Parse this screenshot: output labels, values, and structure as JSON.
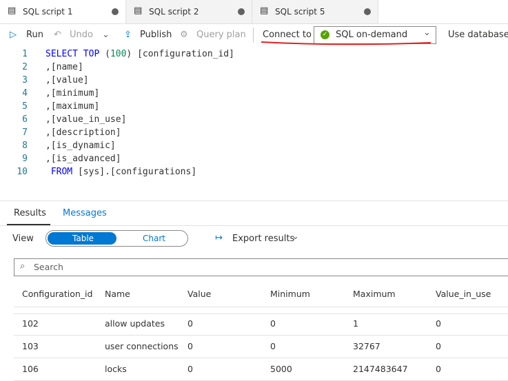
{
  "tabs": [
    "SQL script 1",
    "SQL script 2",
    "SQL script 5"
  ],
  "toolbar": {
    "run": "Run",
    "undo": "Undo",
    "publish": "Publish",
    "query_plan": "Query plan",
    "connect_label": "Connect to",
    "connect_value": "SQL on-demand",
    "use_database": "Use database"
  },
  "editor": {
    "lines": [
      {
        "number": 1,
        "tokens": [
          {
            "text": "SELECT TOP",
            "color": "#0000ff"
          },
          {
            "text": " (",
            "color": "#333333"
          },
          {
            "text": "100",
            "color": "#098658"
          },
          {
            "text": ") [configuration_id]",
            "color": "#333333"
          }
        ]
      },
      {
        "number": 2,
        "tokens": [
          {
            "text": ",[name]",
            "color": "#333333"
          }
        ]
      },
      {
        "number": 3,
        "tokens": [
          {
            "text": ",[value]",
            "color": "#333333"
          }
        ]
      },
      {
        "number": 4,
        "tokens": [
          {
            "text": ",[minimum]",
            "color": "#333333"
          }
        ]
      },
      {
        "number": 5,
        "tokens": [
          {
            "text": ",[maximum]",
            "color": "#333333"
          }
        ]
      },
      {
        "number": 6,
        "tokens": [
          {
            "text": ",[value_in_use]",
            "color": "#333333"
          }
        ]
      },
      {
        "number": 7,
        "tokens": [
          {
            "text": ",[description]",
            "color": "#333333"
          }
        ]
      },
      {
        "number": 8,
        "tokens": [
          {
            "text": ",[is_dynamic]",
            "color": "#333333"
          }
        ]
      },
      {
        "number": 9,
        "tokens": [
          {
            "text": ",[is_advanced]",
            "color": "#333333"
          }
        ]
      },
      {
        "number": 10,
        "tokens": [
          {
            "text": " FROM",
            "color": "#0000ff"
          },
          {
            "text": " [sys].[",
            "color": "#333333"
          },
          {
            "text": "configurations",
            "color": "#333333"
          },
          {
            "text": "]",
            "color": "#333333"
          }
        ]
      }
    ]
  },
  "results": {
    "tabs": [
      "Results",
      "Messages"
    ],
    "view_label": "View",
    "view_options": [
      "Table",
      "Chart"
    ],
    "export": "Export results",
    "search": "Search",
    "table": {
      "columns": [
        "Configuration_id",
        "Name",
        "Value",
        "Minimum",
        "Maximum",
        "Value_in_use"
      ],
      "rows": [
        [
          102,
          "allow updates",
          0,
          0,
          1,
          0
        ],
        [
          103,
          "user connections",
          0,
          0,
          32767,
          0
        ],
        [
          106,
          "locks",
          0,
          5000,
          2147483647,
          0
        ]
      ]
    }
  }
}
